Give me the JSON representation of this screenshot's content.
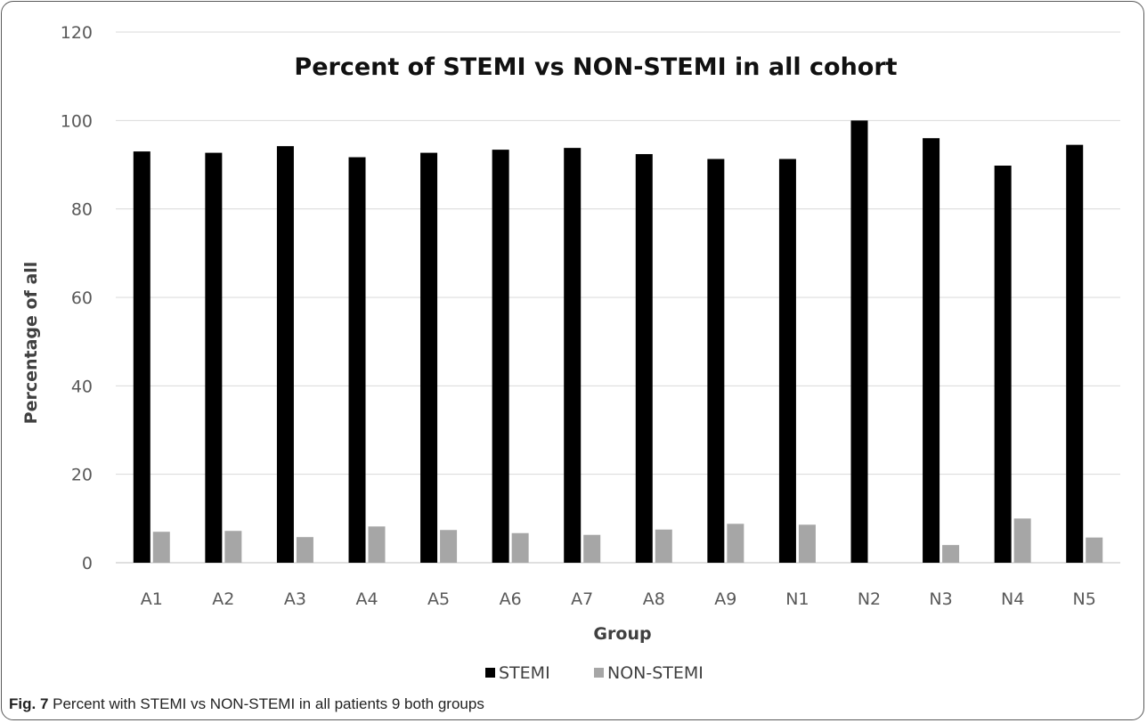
{
  "chart_data": {
    "type": "bar",
    "title": "Percent of STEMI vs NON-STEMI in all cohort",
    "xlabel": "Group",
    "ylabel": "Percentage of all",
    "ylim": [
      0,
      120
    ],
    "yticks": [
      0,
      20,
      40,
      60,
      80,
      100,
      120
    ],
    "grid": true,
    "legend_position": "bottom",
    "categories": [
      "A1",
      "A2",
      "A3",
      "A4",
      "A5",
      "A6",
      "A7",
      "A8",
      "A9",
      "N1",
      "N2",
      "N3",
      "N4",
      "N5"
    ],
    "series": [
      {
        "name": "STEMI",
        "color": "#000000",
        "values": [
          93.0,
          92.7,
          94.2,
          91.7,
          92.7,
          93.4,
          93.8,
          92.4,
          91.3,
          91.3,
          100,
          96.0,
          89.8,
          94.5
        ]
      },
      {
        "name": "NON-STEMI",
        "color": "#a6a6a6",
        "values": [
          7.0,
          7.2,
          5.8,
          8.2,
          7.4,
          6.7,
          6.3,
          7.5,
          8.8,
          8.6,
          0,
          4.0,
          10.0,
          5.7
        ]
      }
    ]
  },
  "caption": {
    "label": "Fig. 7",
    "text": "Percent with STEMI vs NON-STEMI in all patients 9 both groups"
  }
}
